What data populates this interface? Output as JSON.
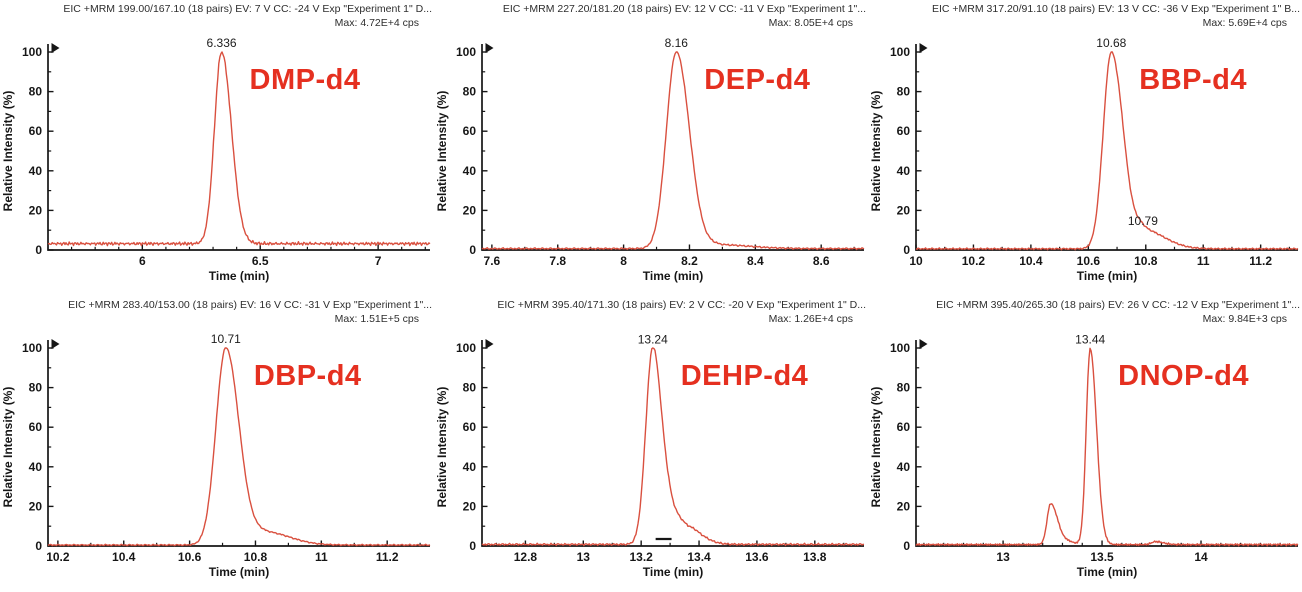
{
  "figure": {
    "description": "Six MRM extracted-ion chromatograms of deuterated phthalate internal standards",
    "rows": 2,
    "cols": 3
  },
  "colors": {
    "trace": "#d9503f",
    "compound_label": "#e53020",
    "axis": "#161616",
    "header_text": "#2e2e2e",
    "peak_label": "#1c1c1c",
    "background": "#ffffff"
  },
  "axis_shared": {
    "x_title": "Time (min)",
    "y_title": "Relative Intensity (%)",
    "y_major_ticks": [
      0,
      20,
      40,
      60,
      80,
      100
    ],
    "y_minor_step": 10,
    "ylim": [
      0,
      100
    ]
  },
  "chart_data": [
    {
      "type": "line",
      "compound": "DMP-d4",
      "header_line1": "EIC +MRM 199.00/167.10 (18 pairs) EV: 7 V CC: -24 V Exp \"Experiment 1\" D...",
      "header_line2": "Max: 4.72E+4 cps",
      "xlabel": "Time (min)",
      "ylabel": "Relative Intensity (%)",
      "xlim": [
        5.6,
        7.22
      ],
      "ylim": [
        0,
        100
      ],
      "x_major_ticks": [
        6,
        6.5,
        7
      ],
      "x_minor_step": 0.1,
      "retention_time_min": 6.336,
      "baseline_pct": 3.2,
      "noise_amp": 1.0,
      "peaks": [
        {
          "time": 6.336,
          "height_pct": 97,
          "width_left": 0.03,
          "width_right": 0.042,
          "label": "6.336"
        }
      ]
    },
    {
      "type": "line",
      "compound": "DEP-d4",
      "header_line1": "EIC +MRM 227.20/181.20 (18 pairs) EV: 12 V CC: -11 V Exp \"Experiment 1\"...",
      "header_line2": "Max: 8.05E+4 cps",
      "xlabel": "Time (min)",
      "ylabel": "Relative Intensity (%)",
      "xlim": [
        7.57,
        8.73
      ],
      "ylim": [
        0,
        100
      ],
      "x_major_ticks": [
        7.6,
        7.8,
        8,
        8.2,
        8.4,
        8.6
      ],
      "x_minor_step": 0.1,
      "retention_time_min": 8.16,
      "baseline_pct": 0.7,
      "noise_amp": 0.5,
      "peaks": [
        {
          "time": 8.16,
          "height_pct": 99.5,
          "width_left": 0.03,
          "width_right": 0.04,
          "label": "8.16"
        },
        {
          "time": 8.28,
          "height_pct": 2,
          "width_left": 0.03,
          "width_right": 0.1
        }
      ]
    },
    {
      "type": "line",
      "compound": "BBP-d4",
      "header_line1": "EIC +MRM 317.20/91.10 (18 pairs) EV: 13 V CC: -36 V Exp \"Experiment 1\" B...",
      "header_line2": "Max: 5.69E+4 cps",
      "xlabel": "Time (min)",
      "ylabel": "Relative Intensity (%)",
      "xlim": [
        10.0,
        11.33
      ],
      "ylim": [
        0,
        100
      ],
      "x_major_ticks": [
        10,
        10.2,
        10.4,
        10.6,
        10.8,
        11,
        11.2
      ],
      "x_minor_step": 0.1,
      "retention_time_min": 10.68,
      "baseline_pct": 0.6,
      "noise_amp": 0.5,
      "peaks": [
        {
          "time": 10.68,
          "height_pct": 99.5,
          "width_left": 0.028,
          "width_right": 0.042,
          "label": "10.68"
        },
        {
          "time": 10.79,
          "height_pct": 9.5,
          "width_left": 0.025,
          "width_right": 0.075,
          "label": "10.79"
        }
      ]
    },
    {
      "type": "line",
      "compound": "DBP-d4",
      "header_line1": "EIC +MRM 283.40/153.00 (18 pairs) EV: 16 V CC: -31 V Exp \"Experiment 1\"...",
      "header_line2": "Max: 1.51E+5 cps",
      "xlabel": "Time (min)",
      "ylabel": "Relative Intensity (%)",
      "xlim": [
        10.17,
        11.33
      ],
      "ylim": [
        0,
        100
      ],
      "x_major_ticks": [
        10.2,
        10.4,
        10.6,
        10.8,
        11,
        11.2
      ],
      "x_minor_step": 0.1,
      "retention_time_min": 10.71,
      "baseline_pct": 0.5,
      "noise_amp": 0.4,
      "peaks": [
        {
          "time": 10.71,
          "height_pct": 99.5,
          "width_left": 0.03,
          "width_right": 0.04,
          "label": "10.71"
        },
        {
          "time": 10.83,
          "height_pct": 6.5,
          "width_left": 0.045,
          "width_right": 0.075
        }
      ]
    },
    {
      "type": "line",
      "compound": "DEHP-d4",
      "header_line1": "EIC +MRM 395.40/171.30 (18 pairs) EV: 2 V CC: -20 V Exp \"Experiment 1\" D...",
      "header_line2": "Max: 1.26E+4 cps",
      "xlabel": "Time (min)",
      "ylabel": "Relative Intensity (%)",
      "xlim": [
        12.65,
        13.97
      ],
      "ylim": [
        0,
        100
      ],
      "x_major_ticks": [
        12.8,
        13,
        13.2,
        13.4,
        13.6,
        13.8
      ],
      "x_minor_step": 0.1,
      "retention_time_min": 13.24,
      "baseline_pct": 0.8,
      "noise_amp": 0.6,
      "baseline_marker": [
        13.25,
        13.305
      ],
      "peaks": [
        {
          "time": 13.24,
          "height_pct": 99,
          "width_left": 0.024,
          "width_right": 0.03,
          "label": "13.24"
        },
        {
          "time": 13.3,
          "height_pct": 16,
          "width_left": 0.025,
          "width_right": 0.055
        },
        {
          "time": 13.39,
          "height_pct": 3,
          "width_left": 0.02,
          "width_right": 0.045
        }
      ]
    },
    {
      "type": "line",
      "compound": "DNOP-d4",
      "header_line1": "EIC +MRM 395.40/265.30 (18 pairs) EV: 26 V CC: -12 V Exp \"Experiment 1\"...",
      "header_line2": "Max: 9.84E+3 cps",
      "xlabel": "Time (min)",
      "ylabel": "Relative Intensity (%)",
      "xlim": [
        12.56,
        14.49
      ],
      "ylim": [
        0,
        100
      ],
      "x_major_ticks": [
        13,
        13.5,
        14
      ],
      "x_minor_step": 0.1,
      "retention_time_min": 13.44,
      "baseline_pct": 0.7,
      "noise_amp": 0.7,
      "peaks": [
        {
          "time": 13.24,
          "height_pct": 20.5,
          "width_left": 0.018,
          "width_right": 0.03
        },
        {
          "time": 13.285,
          "height_pct": 3,
          "width_left": 0.02,
          "width_right": 0.05
        },
        {
          "time": 13.44,
          "height_pct": 99,
          "width_left": 0.02,
          "width_right": 0.032,
          "label": "13.44"
        },
        {
          "time": 13.77,
          "height_pct": 1.5,
          "width_left": 0.02,
          "width_right": 0.04
        }
      ]
    }
  ]
}
